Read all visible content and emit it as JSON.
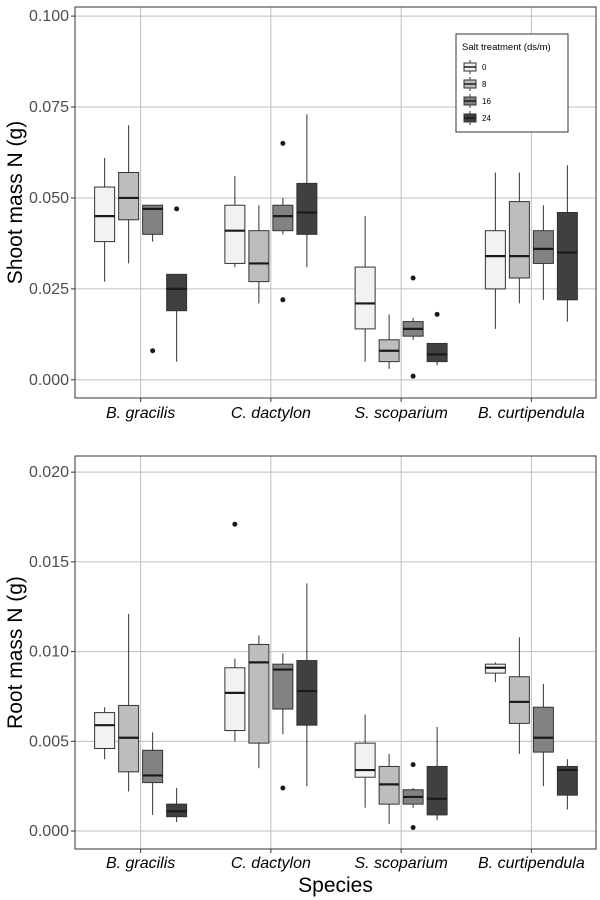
{
  "chart_data": [
    {
      "type": "boxplot",
      "ylabel": "Shoot mass N (g)",
      "xlabel": "",
      "ylim": [
        -0.005,
        0.1025
      ],
      "yticks": [
        0.0,
        0.025,
        0.05,
        0.075,
        0.1
      ],
      "ytick_labels": [
        "0.000",
        "0.025",
        "0.050",
        "0.075",
        "0.100"
      ],
      "categories": [
        "B. gracilis",
        "C. dactylon",
        "S. scoparium",
        "B. curtipendula"
      ],
      "grid": true,
      "legend": {
        "title": "Salt treatment (ds/m)",
        "placement": "top-right",
        "entries": [
          "0",
          "8",
          "16",
          "24"
        ]
      },
      "series": [
        {
          "name": "0",
          "color": "#f2f2f2",
          "boxes": [
            {
              "min": 0.027,
              "q1": 0.038,
              "median": 0.045,
              "q3": 0.053,
              "max": 0.061,
              "outliers": []
            },
            {
              "min": 0.031,
              "q1": 0.032,
              "median": 0.041,
              "q3": 0.048,
              "max": 0.056,
              "outliers": []
            },
            {
              "min": 0.005,
              "q1": 0.014,
              "median": 0.021,
              "q3": 0.031,
              "max": 0.045,
              "outliers": []
            },
            {
              "min": 0.014,
              "q1": 0.025,
              "median": 0.034,
              "q3": 0.041,
              "max": 0.057,
              "outliers": []
            }
          ]
        },
        {
          "name": "8",
          "color": "#bdbdbd",
          "boxes": [
            {
              "min": 0.032,
              "q1": 0.044,
              "median": 0.05,
              "q3": 0.057,
              "max": 0.07,
              "outliers": []
            },
            {
              "min": 0.021,
              "q1": 0.027,
              "median": 0.032,
              "q3": 0.041,
              "max": 0.048,
              "outliers": []
            },
            {
              "min": 0.003,
              "q1": 0.005,
              "median": 0.008,
              "q3": 0.011,
              "max": 0.018,
              "outliers": []
            },
            {
              "min": 0.021,
              "q1": 0.028,
              "median": 0.034,
              "q3": 0.049,
              "max": 0.057,
              "outliers": []
            }
          ]
        },
        {
          "name": "16",
          "color": "#828282",
          "boxes": [
            {
              "min": 0.038,
              "q1": 0.04,
              "median": 0.047,
              "q3": 0.048,
              "max": 0.048,
              "outliers": [
                0.008
              ]
            },
            {
              "min": 0.04,
              "q1": 0.041,
              "median": 0.045,
              "q3": 0.048,
              "max": 0.05,
              "outliers": [
                0.065,
                0.022
              ]
            },
            {
              "min": 0.011,
              "q1": 0.012,
              "median": 0.014,
              "q3": 0.016,
              "max": 0.017,
              "outliers": [
                0.028,
                0.001
              ]
            },
            {
              "min": 0.022,
              "q1": 0.032,
              "median": 0.036,
              "q3": 0.041,
              "max": 0.048,
              "outliers": []
            }
          ]
        },
        {
          "name": "24",
          "color": "#404040",
          "boxes": [
            {
              "min": 0.005,
              "q1": 0.019,
              "median": 0.025,
              "q3": 0.029,
              "max": 0.029,
              "outliers": [
                0.047
              ]
            },
            {
              "min": 0.031,
              "q1": 0.04,
              "median": 0.046,
              "q3": 0.054,
              "max": 0.073,
              "outliers": []
            },
            {
              "min": 0.004,
              "q1": 0.005,
              "median": 0.007,
              "q3": 0.01,
              "max": 0.01,
              "outliers": [
                0.018
              ]
            },
            {
              "min": 0.016,
              "q1": 0.022,
              "median": 0.035,
              "q3": 0.046,
              "max": 0.059,
              "outliers": []
            }
          ]
        }
      ]
    },
    {
      "type": "boxplot",
      "ylabel": "Root mass N (g)",
      "xlabel": "Species",
      "ylim": [
        -0.001,
        0.0209
      ],
      "yticks": [
        0.0,
        0.005,
        0.01,
        0.015,
        0.02
      ],
      "ytick_labels": [
        "0.000",
        "0.005",
        "0.010",
        "0.015",
        "0.020"
      ],
      "categories": [
        "B. gracilis",
        "C. dactylon",
        "S. scoparium",
        "B. curtipendula"
      ],
      "grid": true,
      "series": [
        {
          "name": "0",
          "color": "#f2f2f2",
          "boxes": [
            {
              "min": 0.004,
              "q1": 0.0046,
              "median": 0.0059,
              "q3": 0.0066,
              "max": 0.0069,
              "outliers": []
            },
            {
              "min": 0.005,
              "q1": 0.0056,
              "median": 0.0077,
              "q3": 0.0091,
              "max": 0.0096,
              "outliers": [
                0.0171
              ]
            },
            {
              "min": 0.0013,
              "q1": 0.003,
              "median": 0.0034,
              "q3": 0.0049,
              "max": 0.0065,
              "outliers": []
            },
            {
              "min": 0.0083,
              "q1": 0.0088,
              "median": 0.0091,
              "q3": 0.0093,
              "max": 0.0094,
              "outliers": []
            }
          ]
        },
        {
          "name": "8",
          "color": "#bdbdbd",
          "boxes": [
            {
              "min": 0.0022,
              "q1": 0.0033,
              "median": 0.0052,
              "q3": 0.007,
              "max": 0.0121,
              "outliers": []
            },
            {
              "min": 0.0035,
              "q1": 0.0049,
              "median": 0.0094,
              "q3": 0.0104,
              "max": 0.0109,
              "outliers": []
            },
            {
              "min": 0.0004,
              "q1": 0.0015,
              "median": 0.0026,
              "q3": 0.0036,
              "max": 0.0043,
              "outliers": []
            },
            {
              "min": 0.0043,
              "q1": 0.006,
              "median": 0.0072,
              "q3": 0.0086,
              "max": 0.0108,
              "outliers": []
            }
          ]
        },
        {
          "name": "16",
          "color": "#828282",
          "boxes": [
            {
              "min": 0.0009,
              "q1": 0.0027,
              "median": 0.0031,
              "q3": 0.0045,
              "max": 0.0055,
              "outliers": []
            },
            {
              "min": 0.0054,
              "q1": 0.0068,
              "median": 0.009,
              "q3": 0.0093,
              "max": 0.0099,
              "outliers": [
                0.0024
              ]
            },
            {
              "min": 0.0013,
              "q1": 0.0015,
              "median": 0.0019,
              "q3": 0.0023,
              "max": 0.0024,
              "outliers": [
                0.0037,
                0.0002
              ]
            },
            {
              "min": 0.0025,
              "q1": 0.0044,
              "median": 0.0052,
              "q3": 0.0069,
              "max": 0.0082,
              "outliers": []
            }
          ]
        },
        {
          "name": "24",
          "color": "#404040",
          "boxes": [
            {
              "min": 0.0005,
              "q1": 0.0008,
              "median": 0.0011,
              "q3": 0.0015,
              "max": 0.0024,
              "outliers": []
            },
            {
              "min": 0.0025,
              "q1": 0.0059,
              "median": 0.0078,
              "q3": 0.0095,
              "max": 0.0138,
              "outliers": []
            },
            {
              "min": 0.0006,
              "q1": 0.0009,
              "median": 0.0018,
              "q3": 0.0036,
              "max": 0.0058,
              "outliers": []
            },
            {
              "min": 0.0012,
              "q1": 0.002,
              "median": 0.0034,
              "q3": 0.0036,
              "max": 0.004,
              "outliers": []
            }
          ]
        }
      ]
    }
  ]
}
